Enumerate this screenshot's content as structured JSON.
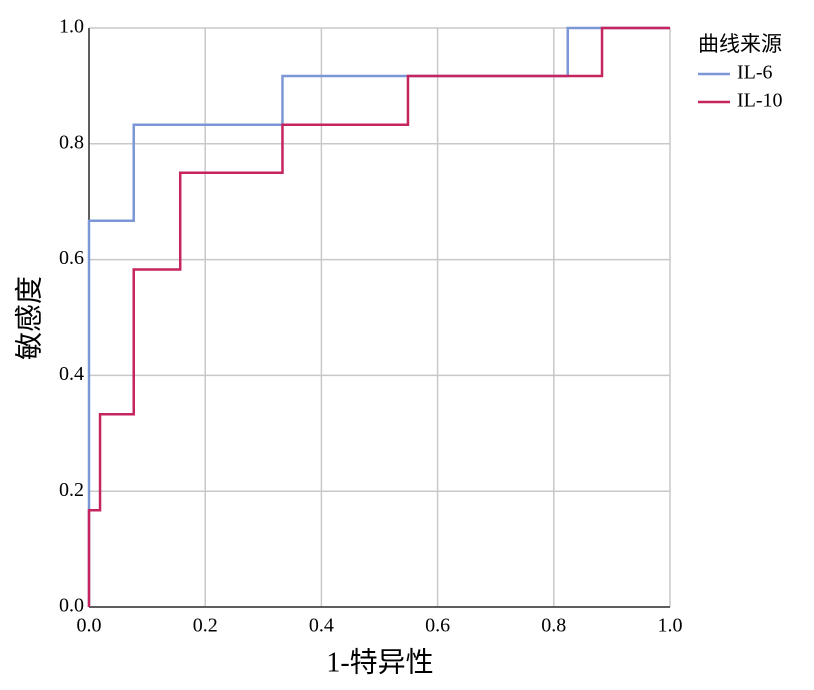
{
  "chart_data": {
    "type": "line",
    "xlabel": "1-特异性",
    "ylabel": "敏感度",
    "legend_title": "曲线来源",
    "legend": "right",
    "xlim": [
      0,
      1
    ],
    "ylim": [
      0,
      1
    ],
    "xticks": [
      {
        "value": 0,
        "label": "0.0"
      },
      0.2,
      0.4,
      0.6,
      0.8,
      {
        "value": 1,
        "label": "1.0"
      }
    ],
    "yticks": [
      {
        "value": 0,
        "label": "0.0"
      },
      0.2,
      0.4,
      0.6,
      0.8,
      {
        "value": 1,
        "label": "1.0"
      }
    ],
    "grid": true,
    "series": [
      {
        "name": "IL-6",
        "color": "#7b97d6",
        "x": [
          0,
          0,
          0.077,
          0.077,
          0.333,
          0.333,
          0.824,
          0.824,
          1
        ],
        "values": [
          0,
          0.667,
          0.667,
          0.833,
          0.833,
          0.917,
          0.917,
          1,
          1
        ]
      },
      {
        "name": "IL-10",
        "color": "#c5245f",
        "x": [
          0,
          0,
          0.019,
          0.019,
          0.077,
          0.077,
          0.157,
          0.157,
          0.333,
          0.333,
          0.549,
          0.549,
          0.883,
          0.883,
          1
        ],
        "values": [
          0,
          0.167,
          0.167,
          0.333,
          0.333,
          0.583,
          0.583,
          0.75,
          0.75,
          0.833,
          0.833,
          0.917,
          0.917,
          1,
          1
        ]
      }
    ]
  }
}
